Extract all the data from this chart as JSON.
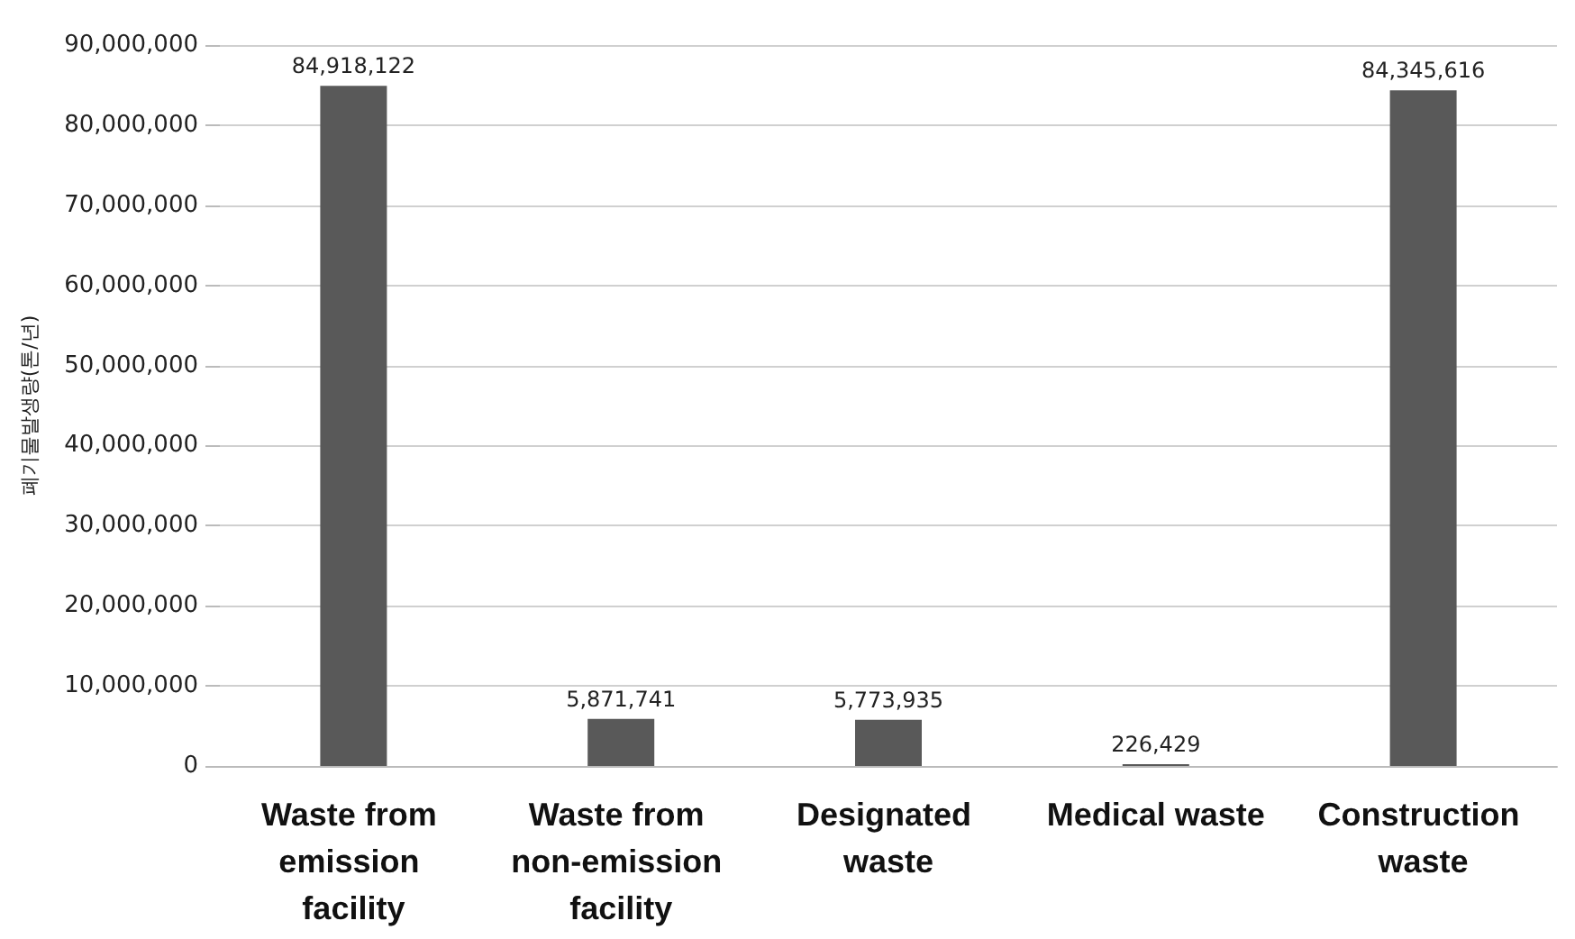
{
  "chart_data": {
    "type": "bar",
    "ylabel": "폐기물발생량(톤/년)",
    "categories": [
      "Waste from emission facility",
      "Waste from non-emission facility",
      "Designated waste",
      "Medical waste",
      "Construction waste"
    ],
    "values": [
      84918122,
      5871741,
      5773935,
      226429,
      84345616
    ],
    "color": "#595959",
    "value_labels": [
      "84,918,122",
      "5,871,741",
      "5,773,935",
      "226,429",
      "84,345,616"
    ],
    "ylim": [
      0,
      90000000
    ],
    "yticks": [
      0,
      {
        "value": 10000000,
        "label": "10,000,000"
      },
      {
        "value": 20000000,
        "label": "20,000,000"
      },
      {
        "value": 30000000,
        "label": "30,000,000"
      },
      {
        "value": 40000000,
        "label": "40,000,000"
      },
      {
        "value": 50000000,
        "label": "50,000,000"
      },
      {
        "value": 60000000,
        "label": "60,000,000"
      },
      {
        "value": 70000000,
        "label": "70,000,000"
      },
      {
        "value": 80000000,
        "label": "80,000,000"
      },
      {
        "value": 90000000,
        "label": "90,000,000"
      }
    ],
    "grid": "y"
  }
}
